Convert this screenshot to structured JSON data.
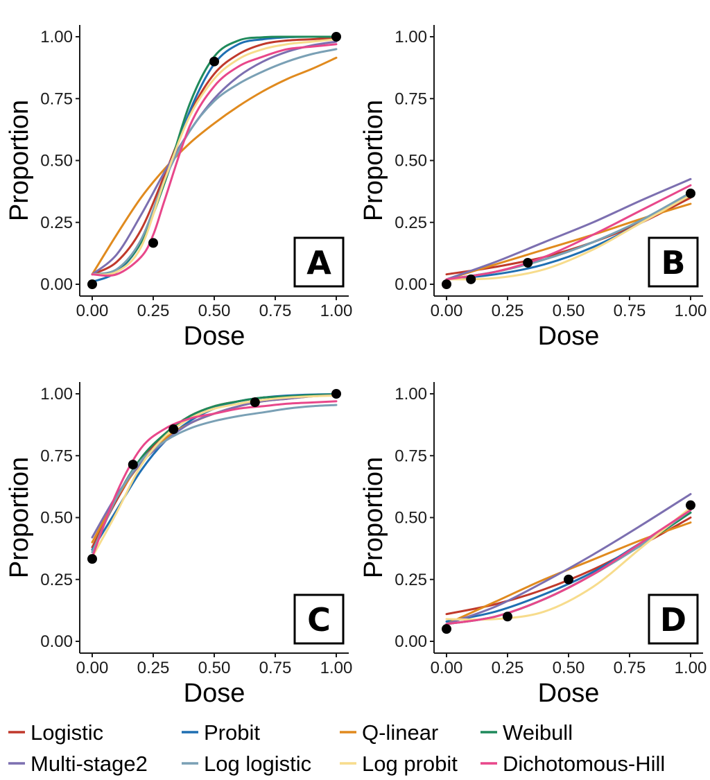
{
  "legend": {
    "items": [
      {
        "name": "Logistic",
        "color": "#C0392B"
      },
      {
        "name": "Probit",
        "color": "#1F6FB2"
      },
      {
        "name": "Q-linear",
        "color": "#E08A1E"
      },
      {
        "name": "Weibull",
        "color": "#1F8A5B"
      },
      {
        "name": "Multi-stage2",
        "color": "#7C6FB0"
      },
      {
        "name": "Log logistic",
        "color": "#7AA0B5"
      },
      {
        "name": "Log probit",
        "color": "#F7DC8C"
      },
      {
        "name": "Dichotomous-Hill",
        "color": "#E8478A"
      }
    ]
  },
  "chart_data": [
    {
      "type": "line",
      "panel_label": "A",
      "xlabel": "Dose",
      "ylabel": "Proportion",
      "xlim": [
        0,
        1
      ],
      "ylim": [
        0,
        1
      ],
      "x_ticks": [
        "0.00",
        "0.25",
        "0.50",
        "0.75",
        "1.00"
      ],
      "y_ticks": [
        "0.00",
        "0.25",
        "0.50",
        "0.75",
        "1.00"
      ],
      "points": {
        "x": [
          0,
          0.25,
          0.5,
          1.0
        ],
        "y": [
          0.0,
          0.167,
          0.9,
          1.0
        ]
      },
      "series": [
        {
          "name": "Logistic",
          "x": [
            0,
            0.1,
            0.2,
            0.3,
            0.4,
            0.5,
            0.6,
            0.7,
            0.8,
            0.9,
            1.0
          ],
          "y": [
            0.04,
            0.09,
            0.22,
            0.45,
            0.69,
            0.85,
            0.93,
            0.97,
            0.985,
            0.99,
            0.995
          ]
        },
        {
          "name": "Probit",
          "x": [
            0,
            0.1,
            0.2,
            0.3,
            0.4,
            0.5,
            0.6,
            0.7,
            0.8,
            0.9,
            1.0
          ],
          "y": [
            0.01,
            0.05,
            0.17,
            0.42,
            0.7,
            0.89,
            0.97,
            0.99,
            0.998,
            1.0,
            1.0
          ]
        },
        {
          "name": "Q-linear",
          "x": [
            0,
            0.1,
            0.2,
            0.3,
            0.4,
            0.5,
            0.6,
            0.7,
            0.8,
            0.9,
            1.0
          ],
          "y": [
            0.04,
            0.2,
            0.35,
            0.47,
            0.57,
            0.65,
            0.72,
            0.78,
            0.83,
            0.87,
            0.915
          ]
        },
        {
          "name": "Weibull",
          "x": [
            0,
            0.1,
            0.2,
            0.3,
            0.4,
            0.5,
            0.6,
            0.7,
            0.8,
            0.9,
            1.0
          ],
          "y": [
            0.04,
            0.06,
            0.17,
            0.42,
            0.73,
            0.92,
            0.985,
            0.998,
            1.0,
            1.0,
            1.0
          ]
        },
        {
          "name": "Multi-stage2",
          "x": [
            0,
            0.1,
            0.2,
            0.3,
            0.4,
            0.5,
            0.6,
            0.7,
            0.8,
            0.9,
            1.0
          ],
          "y": [
            0.04,
            0.12,
            0.28,
            0.46,
            0.62,
            0.75,
            0.84,
            0.9,
            0.94,
            0.965,
            0.98
          ]
        },
        {
          "name": "Log logistic",
          "x": [
            0,
            0.1,
            0.2,
            0.3,
            0.4,
            0.5,
            0.6,
            0.7,
            0.8,
            0.9,
            1.0
          ],
          "y": [
            0.04,
            0.06,
            0.18,
            0.43,
            0.62,
            0.74,
            0.81,
            0.86,
            0.9,
            0.93,
            0.95
          ]
        },
        {
          "name": "Log probit",
          "x": [
            0,
            0.1,
            0.2,
            0.3,
            0.4,
            0.5,
            0.6,
            0.7,
            0.8,
            0.9,
            1.0
          ],
          "y": [
            0.04,
            0.05,
            0.15,
            0.43,
            0.68,
            0.83,
            0.91,
            0.95,
            0.97,
            0.98,
            0.99
          ]
        },
        {
          "name": "Dichotomous-Hill",
          "x": [
            0,
            0.1,
            0.2,
            0.25,
            0.3,
            0.4,
            0.5,
            0.6,
            0.7,
            0.8,
            0.9,
            1.0
          ],
          "y": [
            0.04,
            0.04,
            0.11,
            0.2,
            0.35,
            0.64,
            0.8,
            0.88,
            0.92,
            0.95,
            0.96,
            0.97
          ]
        }
      ]
    },
    {
      "type": "line",
      "panel_label": "B",
      "xlabel": "Dose",
      "ylabel": "Proportion",
      "xlim": [
        0,
        1
      ],
      "ylim": [
        0,
        1
      ],
      "x_ticks": [
        "0.00",
        "0.25",
        "0.50",
        "0.75",
        "1.00"
      ],
      "y_ticks": [
        "0.00",
        "0.25",
        "0.50",
        "0.75",
        "1.00"
      ],
      "points": {
        "x": [
          0,
          0.1,
          0.333,
          1.0
        ],
        "y": [
          0.0,
          0.02,
          0.087,
          0.367
        ]
      },
      "series": [
        {
          "name": "Logistic",
          "x": [
            0,
            0.2,
            0.4,
            0.6,
            0.8,
            1.0
          ],
          "y": [
            0.04,
            0.07,
            0.11,
            0.17,
            0.25,
            0.35
          ]
        },
        {
          "name": "Probit",
          "x": [
            0,
            0.2,
            0.4,
            0.6,
            0.8,
            1.0
          ],
          "y": [
            0.02,
            0.04,
            0.08,
            0.15,
            0.25,
            0.37
          ]
        },
        {
          "name": "Q-linear",
          "x": [
            0,
            0.2,
            0.4,
            0.6,
            0.8,
            1.0
          ],
          "y": [
            0.02,
            0.08,
            0.14,
            0.2,
            0.265,
            0.325
          ]
        },
        {
          "name": "Weibull",
          "x": [
            0,
            0.2,
            0.4,
            0.6,
            0.8,
            1.0
          ],
          "y": [
            0.02,
            0.05,
            0.1,
            0.17,
            0.26,
            0.37
          ]
        },
        {
          "name": "Multi-stage2",
          "x": [
            0,
            0.2,
            0.4,
            0.6,
            0.8,
            1.0
          ],
          "y": [
            0.02,
            0.09,
            0.17,
            0.25,
            0.34,
            0.425
          ]
        },
        {
          "name": "Log logistic",
          "x": [
            0,
            0.2,
            0.4,
            0.6,
            0.8,
            1.0
          ],
          "y": [
            0.02,
            0.05,
            0.1,
            0.17,
            0.26,
            0.37
          ]
        },
        {
          "name": "Log probit",
          "x": [
            0,
            0.2,
            0.4,
            0.6,
            0.8,
            1.0
          ],
          "y": [
            0.02,
            0.025,
            0.06,
            0.14,
            0.25,
            0.36
          ]
        },
        {
          "name": "Dichotomous-Hill",
          "x": [
            0,
            0.2,
            0.4,
            0.6,
            0.8,
            1.0
          ],
          "y": [
            0.02,
            0.05,
            0.11,
            0.2,
            0.3,
            0.4
          ]
        }
      ]
    },
    {
      "type": "line",
      "panel_label": "C",
      "xlabel": "Dose",
      "ylabel": "Proportion",
      "xlim": [
        0,
        1
      ],
      "ylim": [
        0,
        1
      ],
      "x_ticks": [
        "0.00",
        "0.25",
        "0.50",
        "0.75",
        "1.00"
      ],
      "y_ticks": [
        "0.00",
        "0.25",
        "0.50",
        "0.75",
        "1.00"
      ],
      "points": {
        "x": [
          0,
          0.167,
          0.333,
          0.667,
          1.0
        ],
        "y": [
          0.333,
          0.714,
          0.857,
          0.966,
          1.0
        ]
      },
      "series": [
        {
          "name": "Logistic",
          "x": [
            0,
            0.1,
            0.2,
            0.3,
            0.4,
            0.5,
            0.6,
            0.7,
            0.8,
            0.9,
            1.0
          ],
          "y": [
            0.38,
            0.57,
            0.73,
            0.84,
            0.91,
            0.95,
            0.97,
            0.985,
            0.99,
            0.995,
            0.997
          ]
        },
        {
          "name": "Probit",
          "x": [
            0,
            0.1,
            0.2,
            0.3,
            0.4,
            0.5,
            0.6,
            0.7,
            0.8,
            0.9,
            1.0
          ],
          "y": [
            0.37,
            0.53,
            0.69,
            0.81,
            0.89,
            0.94,
            0.97,
            0.985,
            0.993,
            0.997,
            0.999
          ]
        },
        {
          "name": "Q-linear",
          "x": [
            0,
            0.1,
            0.2,
            0.3,
            0.4,
            0.5,
            0.6,
            0.7,
            0.8,
            0.9,
            1.0
          ],
          "y": [
            0.4,
            0.58,
            0.72,
            0.82,
            0.88,
            0.92,
            0.95,
            0.97,
            0.98,
            0.99,
            0.995
          ]
        },
        {
          "name": "Weibull",
          "x": [
            0,
            0.1,
            0.2,
            0.3,
            0.4,
            0.5,
            0.6,
            0.7,
            0.8,
            0.9,
            1.0
          ],
          "y": [
            0.36,
            0.58,
            0.74,
            0.84,
            0.91,
            0.95,
            0.97,
            0.985,
            0.99,
            0.995,
            0.998
          ]
        },
        {
          "name": "Multi-stage2",
          "x": [
            0,
            0.1,
            0.2,
            0.3,
            0.4,
            0.5,
            0.6,
            0.7,
            0.8,
            0.9,
            1.0
          ],
          "y": [
            0.42,
            0.59,
            0.72,
            0.81,
            0.88,
            0.92,
            0.95,
            0.97,
            0.98,
            0.99,
            0.994
          ]
        },
        {
          "name": "Log logistic",
          "x": [
            0,
            0.1,
            0.2,
            0.3,
            0.4,
            0.5,
            0.6,
            0.7,
            0.8,
            0.9,
            1.0
          ],
          "y": [
            0.36,
            0.58,
            0.73,
            0.81,
            0.86,
            0.89,
            0.91,
            0.925,
            0.94,
            0.95,
            0.955
          ]
        },
        {
          "name": "Log probit",
          "x": [
            0,
            0.1,
            0.2,
            0.3,
            0.4,
            0.5,
            0.6,
            0.7,
            0.8,
            0.9,
            1.0
          ],
          "y": [
            0.34,
            0.52,
            0.71,
            0.83,
            0.9,
            0.94,
            0.96,
            0.975,
            0.985,
            0.99,
            0.993
          ]
        },
        {
          "name": "Dichotomous-Hill",
          "x": [
            0,
            0.1,
            0.2,
            0.3,
            0.4,
            0.5,
            0.6,
            0.7,
            0.8,
            0.9,
            1.0
          ],
          "y": [
            0.34,
            0.6,
            0.78,
            0.86,
            0.9,
            0.92,
            0.94,
            0.95,
            0.96,
            0.965,
            0.97
          ]
        }
      ]
    },
    {
      "type": "line",
      "panel_label": "D",
      "xlabel": "Dose",
      "ylabel": "Proportion",
      "xlim": [
        0,
        1
      ],
      "ylim": [
        0,
        1
      ],
      "x_ticks": [
        "0.00",
        "0.25",
        "0.50",
        "0.75",
        "1.00"
      ],
      "y_ticks": [
        "0.00",
        "0.25",
        "0.50",
        "0.75",
        "1.00"
      ],
      "points": {
        "x": [
          0,
          0.25,
          0.5,
          1.0
        ],
        "y": [
          0.05,
          0.1,
          0.25,
          0.55
        ]
      },
      "series": [
        {
          "name": "Logistic",
          "x": [
            0,
            0.2,
            0.4,
            0.6,
            0.8,
            1.0
          ],
          "y": [
            0.11,
            0.15,
            0.21,
            0.29,
            0.39,
            0.5
          ]
        },
        {
          "name": "Probit",
          "x": [
            0,
            0.2,
            0.4,
            0.6,
            0.8,
            1.0
          ],
          "y": [
            0.08,
            0.12,
            0.19,
            0.28,
            0.4,
            0.52
          ]
        },
        {
          "name": "Q-linear",
          "x": [
            0,
            0.2,
            0.4,
            0.6,
            0.8,
            1.0
          ],
          "y": [
            0.07,
            0.16,
            0.25,
            0.33,
            0.41,
            0.48
          ]
        },
        {
          "name": "Weibull",
          "x": [
            0,
            0.2,
            0.4,
            0.6,
            0.8,
            1.0
          ],
          "y": [
            0.07,
            0.1,
            0.17,
            0.27,
            0.39,
            0.52
          ]
        },
        {
          "name": "Multi-stage2",
          "x": [
            0,
            0.2,
            0.4,
            0.6,
            0.8,
            1.0
          ],
          "y": [
            0.07,
            0.14,
            0.24,
            0.35,
            0.47,
            0.595
          ]
        },
        {
          "name": "Log logistic",
          "x": [
            0,
            0.2,
            0.4,
            0.6,
            0.8,
            1.0
          ],
          "y": [
            0.07,
            0.1,
            0.17,
            0.27,
            0.39,
            0.53
          ]
        },
        {
          "name": "Log probit",
          "x": [
            0,
            0.2,
            0.4,
            0.6,
            0.8,
            1.0
          ],
          "y": [
            0.09,
            0.09,
            0.12,
            0.22,
            0.38,
            0.54
          ]
        },
        {
          "name": "Dichotomous-Hill",
          "x": [
            0,
            0.2,
            0.4,
            0.6,
            0.8,
            1.0
          ],
          "y": [
            0.07,
            0.1,
            0.17,
            0.27,
            0.4,
            0.53
          ]
        }
      ]
    }
  ]
}
